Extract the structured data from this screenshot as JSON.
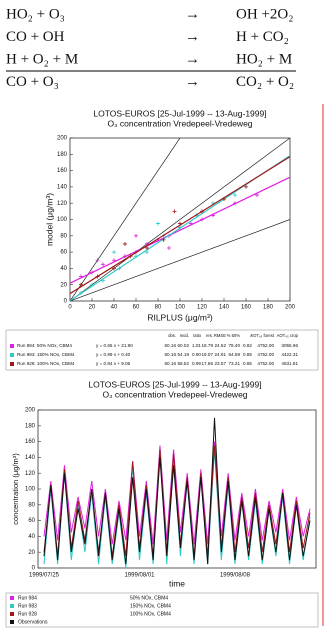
{
  "reactions": [
    {
      "left": "HO₂ + O₃",
      "arrow": "→",
      "right": "OH +2O₂"
    },
    {
      "left": "CO + OH",
      "arrow": "→",
      "right": "H + CO₂"
    },
    {
      "left": "H + O₂ + M",
      "arrow": "→",
      "right": "HO₂ + M"
    },
    {
      "left": "CO + O₃",
      "arrow": "→",
      "right": "CO₂ + O₂"
    }
  ],
  "chart_data": [
    {
      "type": "scatter",
      "title": "LOTOS-EUROS [25-Jul-1999 -- 13-Aug-1999]",
      "subtitle": "O₃ concentration Vredepeel-Vredeweg",
      "xlabel": "RILPLUS (μg/m³)",
      "ylabel": "model (μg/m³)",
      "xlim": [
        0,
        200
      ],
      "ylim": [
        0,
        200
      ],
      "xticks": [
        0,
        20,
        40,
        60,
        80,
        100,
        120,
        140,
        160,
        180,
        200
      ],
      "yticks": [
        0,
        20,
        40,
        60,
        80,
        100,
        120,
        140,
        160,
        180,
        200
      ],
      "reference_slopes": [
        0.5,
        1,
        2
      ],
      "stats_header": [
        "obs.",
        "mod.",
        "ratio",
        "res.",
        "RMSE",
        "% 50%",
        "r",
        "AOT₄₀ forest",
        "AOT₄₀ crop"
      ],
      "series": [
        {
          "name": "Run 984: 50% NOx, CBM4",
          "color": "#e020e0",
          "fit_label": "y = 0.65 x + 21.90",
          "fit": {
            "slope": 0.65,
            "intercept": 21.9
          },
          "stats": [
            "60.16",
            "60.02",
            "1.01",
            "18.79",
            "24.52",
            "78.40",
            "0.82",
            "4752.00",
            "3055.96"
          ],
          "x": [
            10,
            20,
            30,
            40,
            50,
            60,
            70,
            80,
            90,
            100,
            110,
            120,
            130,
            150,
            170,
            25,
            60,
            90
          ],
          "values": [
            30,
            35,
            45,
            50,
            55,
            60,
            70,
            75,
            80,
            90,
            95,
            100,
            105,
            120,
            130,
            50,
            80,
            65
          ]
        },
        {
          "name": "Run 983: 150% NOx, CBM4",
          "color": "#30c8c8",
          "fit_label": "y = 0.89 x + 0.40",
          "fit": {
            "slope": 0.89,
            "intercept": 0.4
          },
          "stats": [
            "60.16",
            "54.19",
            "0.90",
            "19.07",
            "24.91",
            "64.59",
            "0.85",
            "4752.00",
            "4422.31"
          ],
          "x": [
            10,
            20,
            30,
            45,
            60,
            70,
            85,
            100,
            115,
            130,
            150,
            40,
            80
          ],
          "values": [
            10,
            20,
            25,
            40,
            55,
            60,
            80,
            90,
            105,
            120,
            130,
            60,
            95
          ]
        },
        {
          "name": "Run 928: 100% NOx, CBM4",
          "color": "#a01818",
          "fit_label": "y = 0.84 x + 9.06",
          "fit": {
            "slope": 0.84,
            "intercept": 9.06
          },
          "stats": [
            "60.16",
            "58.52",
            "0.99",
            "17.86",
            "23.57",
            "73.21",
            "0.85",
            "4752.00",
            "4531.81"
          ],
          "x": [
            10,
            25,
            40,
            55,
            70,
            85,
            100,
            120,
            140,
            160,
            50,
            95
          ],
          "values": [
            20,
            30,
            40,
            55,
            65,
            75,
            95,
            110,
            125,
            140,
            70,
            110
          ]
        }
      ]
    },
    {
      "type": "line",
      "title": "LOTOS-EUROS [25-Jul-1999 -- 13-Aug-1999]",
      "subtitle": "O₃ concentration Vredepeel-Vredeweg",
      "xlabel": "time",
      "ylabel": "concentration (μg/m³)",
      "ylim": [
        0,
        200
      ],
      "yticks": [
        0,
        20,
        40,
        60,
        80,
        100,
        120,
        140,
        160,
        180,
        200
      ],
      "categories": [
        "1999/07/25",
        null,
        null,
        null,
        null,
        null,
        null,
        null,
        null,
        null,
        null,
        null,
        null,
        null,
        "1999/08/01",
        null,
        null,
        null,
        null,
        null,
        null,
        null,
        null,
        null,
        null,
        null,
        null,
        null,
        "1999/08/08",
        null,
        null,
        null,
        null,
        null,
        null,
        null,
        null,
        null,
        null,
        null
      ],
      "series": [
        {
          "name": "Run 984",
          "description": "50% NOx, CBM4",
          "color": "#e020e0",
          "values": [
            40,
            110,
            35,
            130,
            45,
            90,
            50,
            110,
            40,
            100,
            30,
            85,
            35,
            135,
            40,
            110,
            30,
            155,
            35,
            150,
            45,
            120,
            30,
            125,
            30,
            160,
            40,
            120,
            35,
            95,
            40,
            100,
            35,
            85,
            45,
            100,
            35,
            90,
            40,
            75
          ]
        },
        {
          "name": "Run 983",
          "description": "150% NOx, CBM4",
          "color": "#30c8c8",
          "values": [
            5,
            100,
            5,
            120,
            10,
            80,
            20,
            95,
            5,
            90,
            5,
            70,
            0,
            130,
            10,
            95,
            5,
            150,
            5,
            140,
            15,
            110,
            5,
            115,
            5,
            150,
            10,
            105,
            5,
            85,
            10,
            85,
            5,
            75,
            15,
            90,
            5,
            80,
            10,
            65
          ]
        },
        {
          "name": "Run 928",
          "description": "100% NOx, CBM4",
          "color": "#a01818",
          "values": [
            20,
            105,
            15,
            125,
            25,
            85,
            35,
            100,
            20,
            95,
            15,
            80,
            15,
            135,
            25,
            105,
            15,
            150,
            20,
            145,
            30,
            115,
            15,
            120,
            15,
            155,
            25,
            115,
            20,
            90,
            25,
            95,
            20,
            80,
            30,
            95,
            20,
            85,
            25,
            70
          ]
        },
        {
          "name": "Observations",
          "color": "#111111",
          "values": [
            15,
            105,
            10,
            120,
            20,
            75,
            30,
            100,
            15,
            95,
            10,
            75,
            5,
            115,
            20,
            100,
            10,
            140,
            15,
            130,
            25,
            110,
            10,
            115,
            5,
            190,
            20,
            110,
            10,
            85,
            15,
            90,
            10,
            75,
            20,
            95,
            10,
            80,
            15,
            60
          ]
        }
      ]
    }
  ]
}
